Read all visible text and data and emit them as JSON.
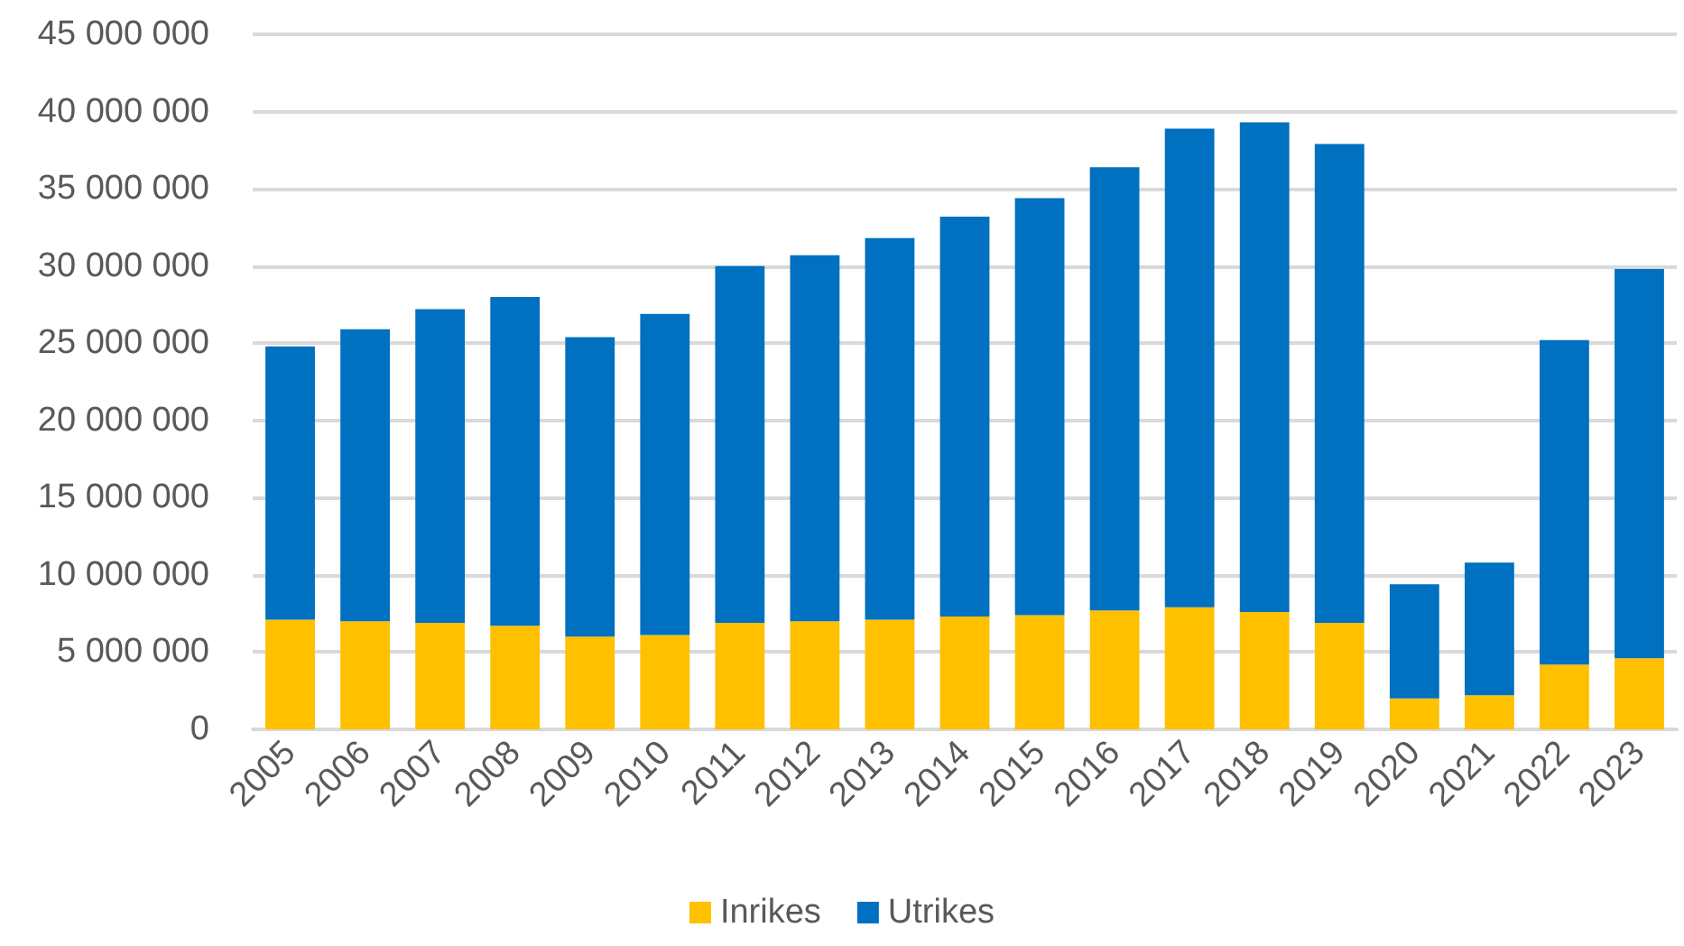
{
  "chart_data": {
    "type": "bar",
    "stacked": true,
    "categories": [
      "2005",
      "2006",
      "2007",
      "2008",
      "2009",
      "2010",
      "2011",
      "2012",
      "2013",
      "2014",
      "2015",
      "2016",
      "2017",
      "2018",
      "2019",
      "2020",
      "2021",
      "2022",
      "2023"
    ],
    "series": [
      {
        "name": "Inrikes",
        "color": "#ffc000",
        "values": [
          7100000,
          7000000,
          6900000,
          6700000,
          6000000,
          6100000,
          6900000,
          7000000,
          7100000,
          7300000,
          7400000,
          7700000,
          7900000,
          7600000,
          6900000,
          2000000,
          2200000,
          4200000,
          4600000
        ]
      },
      {
        "name": "Utrikes",
        "color": "#0070c0",
        "values": [
          17700000,
          18900000,
          20300000,
          21300000,
          19400000,
          20800000,
          23100000,
          23700000,
          24700000,
          25900000,
          27000000,
          28700000,
          31000000,
          31700000,
          31000000,
          7400000,
          8600000,
          21000000,
          25200000
        ]
      }
    ],
    "ylim": [
      0,
      45000000
    ],
    "yticks": [
      {
        "value": 0,
        "label": "0"
      },
      {
        "value": 5000000,
        "label": "5 000 000"
      },
      {
        "value": 10000000,
        "label": "10 000 000"
      },
      {
        "value": 15000000,
        "label": "15 000 000"
      },
      {
        "value": 20000000,
        "label": "20 000 000"
      },
      {
        "value": 25000000,
        "label": "25 000 000"
      },
      {
        "value": 30000000,
        "label": "30 000 000"
      },
      {
        "value": 35000000,
        "label": "35 000 000"
      },
      {
        "value": 40000000,
        "label": "40 000 000"
      },
      {
        "value": 45000000,
        "label": "45 000 000"
      }
    ],
    "grid": "y",
    "legend": "bottom"
  }
}
